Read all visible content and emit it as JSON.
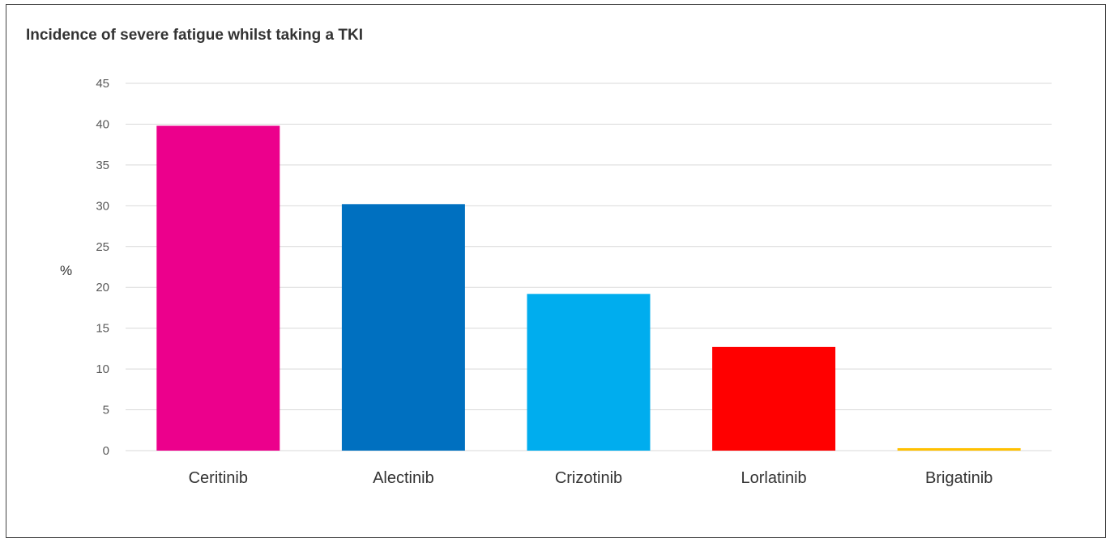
{
  "chart_data": {
    "type": "bar",
    "title": "Incidence of severe fatigue whilst taking a TKI",
    "ylabel": "%",
    "xlabel": "",
    "ylim": [
      0,
      45
    ],
    "yticks": [
      0,
      5,
      10,
      15,
      20,
      25,
      30,
      35,
      40,
      45
    ],
    "grid": true,
    "categories": [
      "Ceritinib",
      "Alectinib",
      "Crizotinib",
      "Lorlatinib",
      "Brigatinib"
    ],
    "values": [
      39.8,
      30.2,
      19.2,
      12.7,
      0.3
    ],
    "colors": [
      "#EC008C",
      "#0070C0",
      "#00ADEE",
      "#FF0000",
      "#FFC000"
    ]
  }
}
